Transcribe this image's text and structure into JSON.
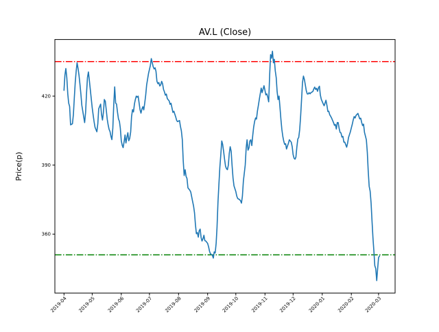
{
  "chart_data": {
    "type": "line",
    "title": "AV.L (Close)",
    "xlabel": "",
    "ylabel": "Price(p)",
    "grid": false,
    "legend": null,
    "background": "#ffffff",
    "spine_color": "#000000",
    "ylim": [
      334.4,
      444.6
    ],
    "yticks": [
      360,
      390,
      420
    ],
    "x_epoch": "2019-04-01",
    "xlim_days": [
      -9.7,
      352.6
    ],
    "xticks": [
      {
        "label": "2019-04",
        "day": 0
      },
      {
        "label": "2019-05",
        "day": 30
      },
      {
        "label": "2019-06",
        "day": 61
      },
      {
        "label": "2019-07",
        "day": 91
      },
      {
        "label": "2019-08",
        "day": 122
      },
      {
        "label": "2019-09",
        "day": 153
      },
      {
        "label": "2019-10",
        "day": 183
      },
      {
        "label": "2019-11",
        "day": 214
      },
      {
        "label": "2019-12",
        "day": 244
      },
      {
        "label": "2020-01",
        "day": 275
      },
      {
        "label": "2020-02",
        "day": 306
      },
      {
        "label": "2020-03",
        "day": 335
      }
    ],
    "hlines": [
      {
        "name": "upper-band",
        "value": 435,
        "color": "#ff0000",
        "style": "dashdot"
      },
      {
        "name": "lower-band",
        "value": 351,
        "color": "#008000",
        "style": "dashdot"
      }
    ],
    "series": [
      {
        "name": "Close",
        "color": "#1f77b4",
        "line_width": 1.6,
        "dates": [
          "2019-04-01",
          "2019-04-02",
          "2019-04-03",
          "2019-04-04",
          "2019-04-05",
          "2019-04-06",
          "2019-04-07",
          "2019-04-08",
          "2019-04-10",
          "2019-04-11",
          "2019-04-12",
          "2019-04-13",
          "2019-04-14",
          "2019-04-15",
          "2019-04-16",
          "2019-04-17",
          "2019-04-18",
          "2019-04-19",
          "2019-04-20",
          "2019-04-22",
          "2019-04-23",
          "2019-04-24",
          "2019-04-25",
          "2019-04-26",
          "2019-04-27",
          "2019-04-28",
          "2019-04-29",
          "2019-04-30",
          "2019-05-01",
          "2019-05-02",
          "2019-05-03",
          "2019-05-04",
          "2019-05-06",
          "2019-05-07",
          "2019-05-08",
          "2019-05-10",
          "2019-05-11",
          "2019-05-12",
          "2019-05-13",
          "2019-05-14",
          "2019-05-15",
          "2019-05-16",
          "2019-05-17",
          "2019-05-18",
          "2019-05-19",
          "2019-05-20",
          "2019-05-21",
          "2019-05-22",
          "2019-05-23",
          "2019-05-24",
          "2019-05-25",
          "2019-05-26",
          "2019-05-27",
          "2019-05-28",
          "2019-05-29",
          "2019-05-30",
          "2019-05-31",
          "2019-06-01",
          "2019-06-02",
          "2019-06-03",
          "2019-06-04",
          "2019-06-05",
          "2019-06-06",
          "2019-06-07",
          "2019-06-08",
          "2019-06-09",
          "2019-06-10",
          "2019-06-11",
          "2019-06-12",
          "2019-06-13",
          "2019-06-14",
          "2019-06-15",
          "2019-06-16",
          "2019-06-17",
          "2019-06-18",
          "2019-06-19",
          "2019-06-20",
          "2019-06-21",
          "2019-06-22",
          "2019-06-23",
          "2019-06-24",
          "2019-06-25",
          "2019-06-26",
          "2019-06-27",
          "2019-06-28",
          "2019-06-30",
          "2019-07-02",
          "2019-07-03",
          "2019-07-05",
          "2019-07-06",
          "2019-07-07",
          "2019-07-08",
          "2019-07-09",
          "2019-07-10",
          "2019-07-11",
          "2019-07-12",
          "2019-07-13",
          "2019-07-14",
          "2019-07-15",
          "2019-07-16",
          "2019-07-17",
          "2019-07-18",
          "2019-07-19",
          "2019-07-20",
          "2019-07-22",
          "2019-07-23",
          "2019-07-24",
          "2019-07-25",
          "2019-07-26",
          "2019-07-27",
          "2019-07-29",
          "2019-07-30",
          "2019-07-31",
          "2019-08-02",
          "2019-08-03",
          "2019-08-04",
          "2019-08-05",
          "2019-08-06",
          "2019-08-07",
          "2019-08-08",
          "2019-08-09",
          "2019-08-10",
          "2019-08-11",
          "2019-08-13",
          "2019-08-14",
          "2019-08-16",
          "2019-08-17",
          "2019-08-18",
          "2019-08-19",
          "2019-08-20",
          "2019-08-21",
          "2019-08-22",
          "2019-08-23",
          "2019-08-24",
          "2019-08-25",
          "2019-08-26",
          "2019-08-27",
          "2019-08-28",
          "2019-08-29",
          "2019-08-30",
          "2019-08-31",
          "2019-09-01",
          "2019-09-02",
          "2019-09-03",
          "2019-09-04",
          "2019-09-06",
          "2019-09-07",
          "2019-09-08",
          "2019-09-09",
          "2019-09-10",
          "2019-09-11",
          "2019-09-12",
          "2019-09-13",
          "2019-09-14",
          "2019-09-15",
          "2019-09-16",
          "2019-09-17",
          "2019-09-18",
          "2019-09-19",
          "2019-09-20",
          "2019-09-21",
          "2019-09-22",
          "2019-09-23",
          "2019-09-24",
          "2019-09-25",
          "2019-09-26",
          "2019-09-27",
          "2019-09-28",
          "2019-09-29",
          "2019-10-01",
          "2019-10-02",
          "2019-10-03",
          "2019-10-05",
          "2019-10-06",
          "2019-10-07",
          "2019-10-08",
          "2019-10-09",
          "2019-10-11",
          "2019-10-12",
          "2019-10-13",
          "2019-10-14",
          "2019-10-15",
          "2019-10-16",
          "2019-10-17",
          "2019-10-18",
          "2019-10-19",
          "2019-10-20",
          "2019-10-21",
          "2019-10-22",
          "2019-10-23",
          "2019-10-24",
          "2019-10-25",
          "2019-10-26",
          "2019-10-27",
          "2019-10-28",
          "2019-10-29",
          "2019-10-30",
          "2019-10-31",
          "2019-11-02",
          "2019-11-03",
          "2019-11-04",
          "2019-11-05",
          "2019-11-06",
          "2019-11-07",
          "2019-11-08",
          "2019-11-09",
          "2019-11-10",
          "2019-11-11",
          "2019-11-12",
          "2019-11-13",
          "2019-11-14",
          "2019-11-15",
          "2019-11-16",
          "2019-11-17",
          "2019-11-18",
          "2019-11-19",
          "2019-11-20",
          "2019-11-21",
          "2019-11-22",
          "2019-11-23",
          "2019-11-24",
          "2019-11-25",
          "2019-11-26",
          "2019-11-27",
          "2019-11-28",
          "2019-11-29",
          "2019-11-30",
          "2019-12-01",
          "2019-12-02",
          "2019-12-03",
          "2019-12-04",
          "2019-12-05",
          "2019-12-06",
          "2019-12-07",
          "2019-12-08",
          "2019-12-09",
          "2019-12-10",
          "2019-12-11",
          "2019-12-12",
          "2019-12-13",
          "2019-12-14",
          "2019-12-15",
          "2019-12-16",
          "2019-12-17",
          "2019-12-18",
          "2019-12-19",
          "2019-12-20",
          "2019-12-22",
          "2019-12-23",
          "2019-12-24",
          "2019-12-25",
          "2019-12-26",
          "2019-12-27",
          "2019-12-28",
          "2019-12-29",
          "2019-12-30",
          "2019-12-31",
          "2020-01-02",
          "2020-01-03",
          "2020-01-04",
          "2020-01-05",
          "2020-01-06",
          "2020-01-07",
          "2020-01-08",
          "2020-01-09",
          "2020-01-10",
          "2020-01-11",
          "2020-01-13",
          "2020-01-14",
          "2020-01-15",
          "2020-01-16",
          "2020-01-17",
          "2020-01-18",
          "2020-01-19",
          "2020-01-20",
          "2020-01-21",
          "2020-01-22",
          "2020-01-23",
          "2020-01-24",
          "2020-01-25",
          "2020-01-27",
          "2020-01-28",
          "2020-01-29",
          "2020-01-30",
          "2020-01-31",
          "2020-02-01",
          "2020-02-02",
          "2020-02-03",
          "2020-02-04",
          "2020-02-05",
          "2020-02-06",
          "2020-02-08",
          "2020-02-09",
          "2020-02-10",
          "2020-02-11",
          "2020-02-12",
          "2020-02-13",
          "2020-02-14",
          "2020-02-15",
          "2020-02-17",
          "2020-02-18",
          "2020-02-19",
          "2020-02-20",
          "2020-02-21",
          "2020-02-22",
          "2020-02-23",
          "2020-02-24",
          "2020-02-25",
          "2020-02-26",
          "2020-02-27",
          "2020-02-28",
          "2020-02-29",
          "2020-03-01",
          "2020-03-02"
        ],
        "values": [
          422.5,
          429,
          432,
          428,
          421,
          417,
          415.5,
          407.5,
          408,
          412,
          419,
          426,
          431,
          434.5,
          432,
          429,
          425,
          421,
          416,
          411,
          408.5,
          413,
          421,
          428,
          430.5,
          427,
          423,
          419,
          415,
          412,
          409,
          406.5,
          404.5,
          408,
          414.5,
          416.5,
          412,
          409.6,
          413,
          418.5,
          417.8,
          414,
          410,
          407.6,
          405.6,
          404.6,
          402.6,
          401.1,
          406.1,
          416.1,
          424,
          417,
          416.5,
          413,
          410.1,
          409,
          406.1,
          400.6,
          398.6,
          397.6,
          400.1,
          403.1,
          399.6,
          402.1,
          404.1,
          400.6,
          401.6,
          404.4,
          411.1,
          414.1,
          413.1,
          416.6,
          418.5,
          420,
          419.5,
          420,
          417,
          414,
          412.6,
          414.4,
          415.4,
          414,
          417,
          420.4,
          424.9,
          429.8,
          433.3,
          436.3,
          432.8,
          431.8,
          432.3,
          430.8,
          426.4,
          425.4,
          425.9,
          424.4,
          424.9,
          426.4,
          425.4,
          422.9,
          421.8,
          420.4,
          420.9,
          418.9,
          417.9,
          416.4,
          416.9,
          414.9,
          412.9,
          413.4,
          410.9,
          409.4,
          408.9,
          409.4,
          406.9,
          404.9,
          401,
          392,
          385.5,
          388,
          385.1,
          384.2,
          380.1,
          379.1,
          378.3,
          374.2,
          372.2,
          369.2,
          364.2,
          360.2,
          360.7,
          358.7,
          361.5,
          362.2,
          358.5,
          357,
          358,
          359.5,
          357.2,
          357,
          356.5,
          356,
          354.5,
          352.5,
          351.5,
          350.8,
          349.6,
          352.3,
          351.8,
          356,
          363,
          374,
          382,
          389,
          394.5,
          400.5,
          399,
          396,
          392.5,
          389.5,
          388.5,
          388,
          390,
          395,
          398,
          396,
          390,
          384.5,
          381,
          378.5,
          376.5,
          375.5,
          375,
          374.5,
          373.5,
          376.5,
          383,
          390,
          397.5,
          401,
          396.5,
          397.5,
          400.5,
          401,
          398.5,
          403,
          406.5,
          409,
          410.5,
          410,
          413.5,
          416,
          418.5,
          421,
          423.5,
          421.5,
          423,
          424.5,
          420.5,
          421,
          419.5,
          417.5,
          429,
          438,
          436.5,
          439.5,
          434.5,
          436,
          431,
          428,
          422,
          418.5,
          420,
          415,
          410,
          405.5,
          402.5,
          400.5,
          399,
          399.3,
          397,
          398.3,
          399.5,
          401,
          400.5,
          400,
          398,
          394.6,
          393,
          392.6,
          393.5,
          397.9,
          401.4,
          402,
          405.4,
          411.4,
          418.3,
          425.9,
          428.7,
          427.2,
          424.9,
          422.4,
          421,
          420.9,
          421.5,
          421,
          421.5,
          422,
          423.1,
          423.9,
          422.9,
          423.4,
          422.1,
          423.6,
          424.3,
          420.5,
          418.6,
          416.7,
          415.8,
          417,
          418.2,
          416,
          413.3,
          413.4,
          411.9,
          411.2,
          410.4,
          408.5,
          407.3,
          407.7,
          405.7,
          408.5,
          408.5,
          406,
          404.2,
          404,
          402.2,
          402.5,
          400,
          400,
          397.8,
          399.5,
          402,
          403.3,
          404.5,
          406.2,
          407.8,
          409.6,
          411.1,
          410.5,
          411.6,
          412.5,
          411.2,
          410.1,
          410.4,
          408.5,
          407.2,
          407.8,
          404.2,
          401,
          395.5,
          387.5,
          380.8,
          378.7,
          373.5,
          366,
          358.5,
          352.5,
          346.3,
          345,
          339.8,
          344.8,
          349.8,
          350.5
        ]
      }
    ]
  }
}
